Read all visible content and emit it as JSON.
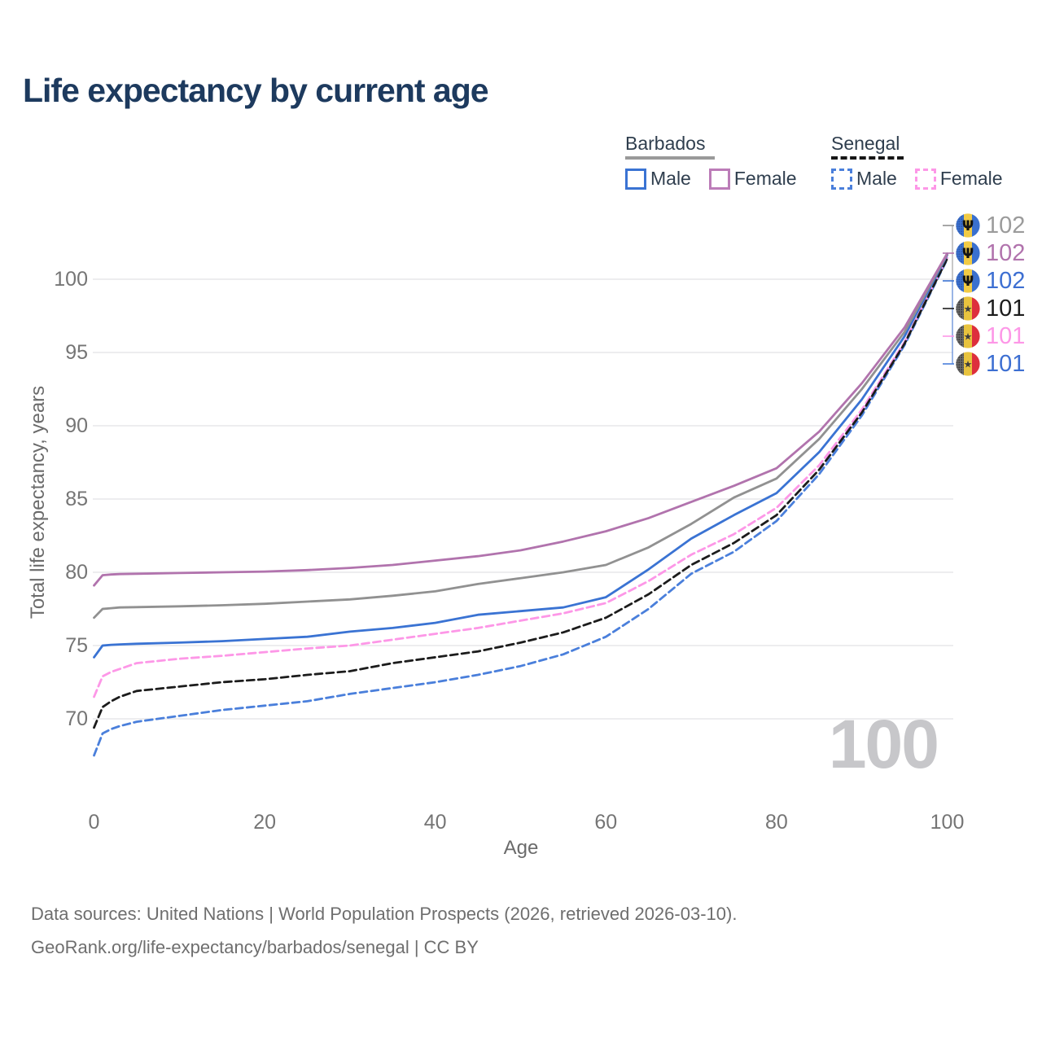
{
  "title": "Life expectancy by current age",
  "watermark_age": "100",
  "legend": {
    "groups": [
      {
        "label": "Barbados",
        "line_style": "solid",
        "line_color": "#9a9a9a",
        "items": [
          {
            "label": "Male",
            "color": "#3a73d3",
            "dashed": false
          },
          {
            "label": "Female",
            "color": "#bc7cb8",
            "dashed": false
          }
        ]
      },
      {
        "label": "Senegal",
        "line_style": "dashed",
        "line_color": "#161616",
        "items": [
          {
            "label": "Male",
            "color": "#4a7fdb",
            "dashed": true
          },
          {
            "label": "Female",
            "color": "#fd97e7",
            "dashed": true
          }
        ]
      }
    ]
  },
  "axes": {
    "y_title": "Total life expectancy, years",
    "x_title": "Age",
    "y_ticks": [
      70,
      75,
      80,
      85,
      90,
      95,
      100
    ],
    "x_ticks": [
      0,
      20,
      40,
      60,
      80,
      100
    ]
  },
  "footer": {
    "line1": "Data sources: United Nations | World Population Prospects (2026, retrieved 2026-03-10).",
    "line2": "GeoRank.org/life-expectancy/barbados/senegal | CC BY"
  },
  "chart_data": {
    "type": "line",
    "title": "Life expectancy by current age",
    "xlabel": "Age",
    "ylabel": "Total life expectancy, years",
    "xlim": [
      0,
      100
    ],
    "ylim": [
      70,
      100
    ],
    "grid": "horizontal",
    "legend_position": "top-right",
    "x": [
      0,
      1,
      2,
      3,
      5,
      10,
      15,
      20,
      25,
      30,
      35,
      40,
      45,
      50,
      55,
      60,
      65,
      70,
      75,
      80,
      85,
      90,
      95,
      100
    ],
    "series": [
      {
        "name": "Barbados — both sexes",
        "country": "Barbados",
        "sex": "both",
        "flag": "barbados",
        "color": "#919191",
        "dashed": false,
        "end_label": "102",
        "end_label_color": "#9b9b9b",
        "values": [
          76.9,
          77.5,
          77.55,
          77.6,
          77.62,
          77.68,
          77.75,
          77.85,
          78.0,
          78.15,
          78.4,
          78.7,
          79.2,
          79.6,
          80.0,
          80.5,
          81.7,
          83.3,
          85.1,
          86.4,
          89.1,
          92.5,
          96.4,
          101.7
        ]
      },
      {
        "name": "Barbados — female",
        "country": "Barbados",
        "sex": "female",
        "flag": "barbados",
        "color": "#b173ad",
        "dashed": false,
        "end_label": "102",
        "end_label_color": "#b173ad",
        "values": [
          79.1,
          79.8,
          79.85,
          79.88,
          79.9,
          79.95,
          80.0,
          80.05,
          80.15,
          80.3,
          80.5,
          80.8,
          81.1,
          81.5,
          82.1,
          82.8,
          83.7,
          84.8,
          85.9,
          87.1,
          89.6,
          92.9,
          96.7,
          101.75
        ]
      },
      {
        "name": "Barbados — male",
        "country": "Barbados",
        "sex": "male",
        "flag": "barbados",
        "color": "#3a73d3",
        "dashed": false,
        "end_label": "102",
        "end_label_color": "#3d6fd2",
        "values": [
          74.2,
          75.0,
          75.05,
          75.08,
          75.12,
          75.2,
          75.3,
          75.45,
          75.6,
          75.95,
          76.2,
          76.55,
          77.1,
          77.35,
          77.6,
          78.3,
          80.2,
          82.3,
          83.9,
          85.4,
          88.2,
          91.8,
          96.1,
          101.65
        ]
      },
      {
        "name": "Senegal — both sexes",
        "country": "Senegal",
        "sex": "both",
        "flag": "senegal",
        "color": "#1c1c1c",
        "dashed": true,
        "end_label": "101",
        "end_label_color": "#1c1c1c",
        "values": [
          69.4,
          70.8,
          71.2,
          71.5,
          71.9,
          72.2,
          72.5,
          72.7,
          73.0,
          73.25,
          73.8,
          74.2,
          74.6,
          75.2,
          75.9,
          76.9,
          78.5,
          80.5,
          82.0,
          83.9,
          87.0,
          90.9,
          95.6,
          101.4
        ]
      },
      {
        "name": "Senegal — female",
        "country": "Senegal",
        "sex": "female",
        "flag": "senegal",
        "color": "#fd97e7",
        "dashed": true,
        "end_label": "101",
        "end_label_color": "#fd97e7",
        "values": [
          71.5,
          72.9,
          73.2,
          73.4,
          73.8,
          74.1,
          74.3,
          74.55,
          74.8,
          75.0,
          75.4,
          75.8,
          76.2,
          76.7,
          77.2,
          77.9,
          79.4,
          81.2,
          82.6,
          84.4,
          87.3,
          91.1,
          95.7,
          101.45
        ]
      },
      {
        "name": "Senegal — male",
        "country": "Senegal",
        "sex": "male",
        "flag": "senegal",
        "color": "#4a7fdb",
        "dashed": true,
        "end_label": "101",
        "end_label_color": "#3d6fd2",
        "values": [
          67.5,
          69.0,
          69.3,
          69.5,
          69.8,
          70.2,
          70.6,
          70.9,
          71.2,
          71.7,
          72.1,
          72.5,
          73.0,
          73.6,
          74.4,
          75.6,
          77.5,
          79.9,
          81.4,
          83.5,
          86.7,
          90.7,
          95.5,
          101.35
        ]
      }
    ]
  }
}
